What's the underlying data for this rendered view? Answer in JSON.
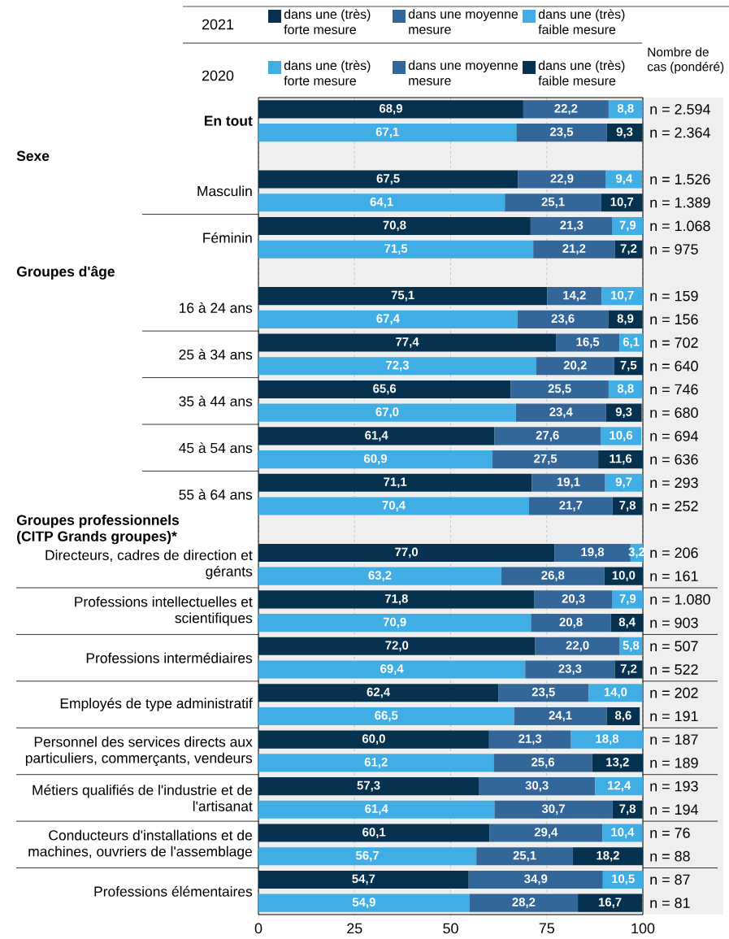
{
  "chart_data": {
    "type": "bar",
    "orientation": "horizontal",
    "stacked": true,
    "grid": "x",
    "legend": "top",
    "xlim": [
      0,
      100
    ],
    "xticks": [
      0,
      25,
      50,
      75,
      100
    ],
    "categories": [
      "En tout",
      null,
      null,
      "Masculin",
      null,
      "Féminin",
      null,
      null,
      "16 à 24 ans",
      null,
      "25 à 34 ans",
      null,
      "35 à 44 ans",
      null,
      "45 à 54 ans",
      null,
      "55 à 64 ans",
      null,
      null,
      "Directeurs, cadres de direction et gérants",
      null,
      "Professions intellectuelles et scientifiques",
      null,
      "Professions intermédiaires",
      null,
      "Employés de type administratif",
      null,
      "Personnel des services directs aux particuliers, commerçants, vendeurs",
      null,
      "Métiers qualifiés de l'industrie et de l'artisanat",
      null,
      "Conducteurs d'installations et de machines, ouvriers de l'assemblage",
      null,
      "Professions élémentaires",
      null
    ],
    "series": [
      {
        "name": "dans une (très) forte mesure",
        "color": "#06324f",
        "values": [
          68.9,
          null,
          null,
          67.5,
          null,
          70.8,
          null,
          null,
          75.1,
          null,
          77.4,
          null,
          65.6,
          null,
          61.4,
          null,
          71.1,
          null,
          null,
          77.0,
          null,
          71.8,
          null,
          72.0,
          null,
          62.4,
          null,
          60.0,
          null,
          57.3,
          null,
          60.1,
          null,
          54.7,
          null
        ],
        "value_labels": [
          "68,9",
          null,
          null,
          "67,5",
          null,
          "70,8",
          null,
          null,
          "75,1",
          null,
          "77,4",
          null,
          "65,6",
          null,
          "61,4",
          null,
          "71,1",
          null,
          null,
          "77,0",
          null,
          "71,8",
          null,
          "72,0",
          null,
          "62,4",
          null,
          "60,0",
          null,
          "57,3",
          null,
          "60,1",
          null,
          "54,7",
          null
        ]
      },
      {
        "name": "dans une moyenne mesure",
        "color": "#336699",
        "values": [
          22.2,
          null,
          null,
          22.9,
          null,
          21.3,
          null,
          null,
          14.2,
          null,
          16.5,
          null,
          25.5,
          null,
          27.6,
          null,
          19.1,
          null,
          null,
          19.8,
          null,
          20.3,
          null,
          22.0,
          null,
          23.5,
          null,
          21.3,
          null,
          30.3,
          null,
          29.4,
          null,
          34.9,
          null
        ],
        "value_labels": [
          "22,2",
          null,
          null,
          "22,9",
          null,
          "21,3",
          null,
          null,
          "14,2",
          null,
          "16,5",
          null,
          "25,5",
          null,
          "27,6",
          null,
          "19,1",
          null,
          null,
          "19,8",
          null,
          "20,3",
          null,
          "22,0",
          null,
          "23,5",
          null,
          "21,3",
          null,
          "30,3",
          null,
          "29,4",
          null,
          "34,9",
          null
        ]
      },
      {
        "name": "dans une (très) faible mesure",
        "color": "#40ade4",
        "values": [
          8.8,
          null,
          null,
          9.4,
          null,
          7.9,
          null,
          null,
          10.7,
          null,
          6.1,
          null,
          8.8,
          null,
          10.6,
          null,
          9.7,
          null,
          null,
          3.2,
          null,
          7.9,
          null,
          5.8,
          null,
          14.0,
          null,
          18.8,
          null,
          12.4,
          null,
          10.4,
          null,
          10.5,
          null
        ],
        "value_labels": [
          "8,8",
          null,
          null,
          "9,4",
          null,
          "7,9",
          null,
          null,
          "10,7",
          null,
          "6,1",
          null,
          "8,8",
          null,
          "10,6",
          null,
          "9,7",
          null,
          null,
          "3,2",
          null,
          "7,9",
          null,
          "5,8",
          null,
          "14,0",
          null,
          "18,8",
          null,
          "12,4",
          null,
          "10,4",
          null,
          "10,5",
          null
        ]
      },
      {
        "name": "dans une (très) forte mesure",
        "color": "#40ade4",
        "values": [
          null,
          67.1,
          null,
          null,
          64.1,
          null,
          71.5,
          null,
          null,
          67.4,
          null,
          72.3,
          null,
          67.0,
          null,
          60.9,
          null,
          70.4,
          null,
          null,
          63.2,
          null,
          70.9,
          null,
          69.4,
          null,
          66.5,
          null,
          61.2,
          null,
          61.4,
          null,
          56.7,
          null,
          54.9
        ],
        "value_labels": [
          null,
          "67,1",
          null,
          null,
          "64,1",
          null,
          "71,5",
          null,
          null,
          "67,4",
          null,
          "72,3",
          null,
          "67,0",
          null,
          "60,9",
          null,
          "70,4",
          null,
          null,
          "63,2",
          null,
          "70,9",
          null,
          "69,4",
          null,
          "66,5",
          null,
          "61,2",
          null,
          "61,4",
          null,
          "56,7",
          null,
          "54,9"
        ]
      },
      {
        "name": "dans une moyenne mesure",
        "color": "#336699",
        "values": [
          null,
          23.5,
          null,
          null,
          25.1,
          null,
          21.2,
          null,
          null,
          23.6,
          null,
          20.2,
          null,
          23.4,
          null,
          27.5,
          null,
          21.7,
          null,
          null,
          26.8,
          null,
          20.8,
          null,
          23.3,
          null,
          24.1,
          null,
          25.6,
          null,
          30.7,
          null,
          25.1,
          null,
          28.2
        ],
        "value_labels": [
          null,
          "23,5",
          null,
          null,
          "25,1",
          null,
          "21,2",
          null,
          null,
          "23,6",
          null,
          "20,2",
          null,
          "23,4",
          null,
          "27,5",
          null,
          "21,7",
          null,
          null,
          "26,8",
          null,
          "20,8",
          null,
          "23,3",
          null,
          "24,1",
          null,
          "25,6",
          null,
          "30,7",
          null,
          "25,1",
          null,
          "28,2"
        ]
      },
      {
        "name": "dans une (très) faible mesure",
        "color": "#06324f",
        "values": [
          null,
          9.3,
          null,
          null,
          10.7,
          null,
          7.2,
          null,
          null,
          8.9,
          null,
          7.5,
          null,
          9.3,
          null,
          11.6,
          null,
          7.8,
          null,
          null,
          10.0,
          null,
          8.4,
          null,
          7.2,
          null,
          8.6,
          null,
          13.2,
          null,
          7.8,
          null,
          18.2,
          null,
          16.7
        ],
        "value_labels": [
          null,
          "9,3",
          null,
          null,
          "10,7",
          null,
          "7,2",
          null,
          null,
          "8,9",
          null,
          "7,5",
          null,
          "9,3",
          null,
          "11,6",
          null,
          "7,8",
          null,
          null,
          "10,0",
          null,
          "8,4",
          null,
          "7,2",
          null,
          "8,6",
          null,
          "13,2",
          null,
          "7,8",
          null,
          "18,2",
          null,
          "16,7"
        ]
      }
    ],
    "annotations": [
      "Nombre de cas (pondéré)",
      "2021",
      "2020",
      "Sexe",
      "Groupes d'âge",
      "Groupes professionnels (CITP Grands groupes)*",
      "n = 2.594",
      "n = 2.364",
      "n = 1.526",
      "n = 1.389",
      "n = 1.068",
      "n = 975",
      "n = 159",
      "n = 156",
      "n = 702",
      "n = 640",
      "n = 746",
      "n = 680",
      "n = 694",
      "n = 636",
      "n = 293",
      "n = 252",
      "n = 206",
      "n = 161",
      "n = 1.080",
      "n = 903",
      "n = 507",
      "n = 522",
      "n = 202",
      "n = 191",
      "n = 187",
      "n = 189",
      "n = 193",
      "n = 194",
      "n = 76",
      "n = 88",
      "n = 87",
      "n = 81"
    ]
  }
}
